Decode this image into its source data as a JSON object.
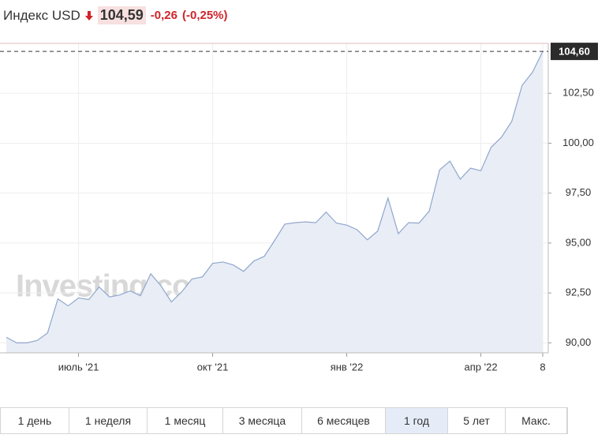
{
  "header": {
    "title": "Индекс USD",
    "price": "104,59",
    "change": "-0,26",
    "change_percent": "(-0,25%)"
  },
  "chart_data": {
    "type": "area",
    "watermark": "Investing.com",
    "categories": [
      null,
      null,
      null,
      null,
      null,
      null,
      null,
      "июль '21",
      null,
      null,
      null,
      null,
      null,
      null,
      null,
      null,
      null,
      null,
      null,
      null,
      "окт '21",
      null,
      null,
      null,
      null,
      null,
      null,
      null,
      null,
      null,
      null,
      null,
      null,
      "янв '22",
      null,
      null,
      null,
      null,
      null,
      null,
      null,
      null,
      null,
      null,
      null,
      null,
      "апр '22",
      null,
      null,
      null,
      null,
      null,
      "8"
    ],
    "values": [
      90.28,
      90.0,
      90.0,
      90.12,
      90.5,
      92.2,
      91.85,
      92.25,
      92.17,
      92.8,
      92.3,
      92.4,
      92.6,
      92.36,
      93.46,
      92.85,
      92.05,
      92.55,
      93.2,
      93.3,
      93.98,
      94.05,
      93.9,
      93.58,
      94.1,
      94.33,
      95.12,
      95.95,
      96.02,
      96.06,
      96.02,
      96.55,
      96.0,
      95.9,
      95.67,
      95.16,
      95.6,
      97.25,
      95.47,
      96.02,
      96.0,
      96.6,
      98.66,
      99.1,
      98.2,
      98.75,
      98.62,
      99.8,
      100.3,
      101.1,
      102.9,
      103.55,
      104.6
    ],
    "color": "#8fa7cc",
    "fill": "#e9edf6",
    "ylim": [
      89.5,
      105
    ],
    "yticks": [
      {
        "value": 90,
        "label": "90,00"
      },
      {
        "value": 92.5,
        "label": "92,50"
      },
      {
        "value": 95,
        "label": "95,00"
      },
      {
        "value": 97.5,
        "label": "97,50"
      },
      {
        "value": 100,
        "label": "100,00"
      },
      {
        "value": 102.5,
        "label": "102,50"
      }
    ],
    "price_line": {
      "value": 104.6,
      "label": "104,60"
    },
    "grid": true
  },
  "periods": {
    "buttons": [
      "1 день",
      "1 неделя",
      "1 месяц",
      "3 месяца",
      "6 месяцев",
      "1 год",
      "5 лет",
      "Макс."
    ],
    "selected": 5
  }
}
